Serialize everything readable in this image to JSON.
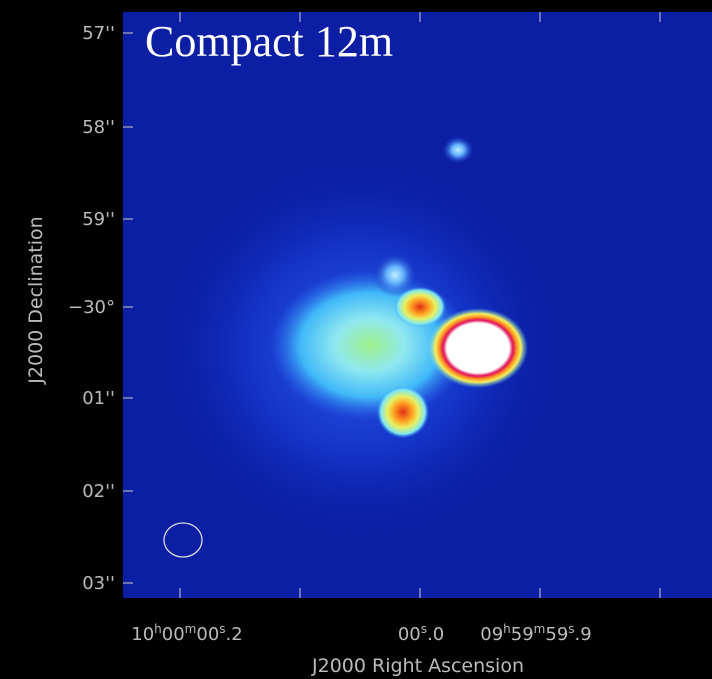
{
  "title": "Compact 12m",
  "y_axis": {
    "label": "J2000 Declination",
    "ticks": [
      "57''",
      "58''",
      "59''",
      "−30°",
      "01''",
      "02''",
      "03''"
    ]
  },
  "x_axis": {
    "label": "J2000 Right Ascension",
    "ticks": [
      {
        "parts": [
          "10",
          "h",
          "00",
          "m",
          "00",
          "s",
          ".2"
        ]
      },
      {
        "parts": [
          "00",
          "s",
          ".0"
        ]
      },
      {
        "parts": [
          "09",
          "h",
          "59",
          "m",
          "59",
          "s",
          ".9"
        ]
      }
    ]
  }
}
